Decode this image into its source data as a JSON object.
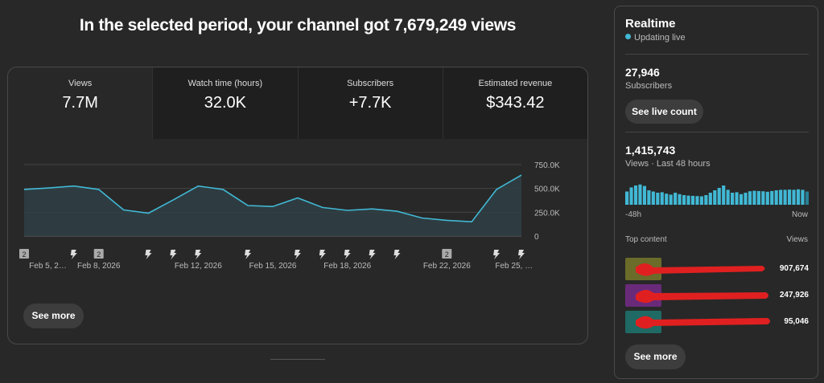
{
  "headline": "In the selected period, your channel got 7,679,249 views",
  "tabs": [
    {
      "label": "Views",
      "value": "7.7M",
      "active": true
    },
    {
      "label": "Watch time (hours)",
      "value": "32.0K",
      "active": false
    },
    {
      "label": "Subscribers",
      "value": "+7.7K",
      "active": false
    },
    {
      "label": "Estimated revenue",
      "value": "$343.42",
      "active": false
    }
  ],
  "chart_data": {
    "type": "area",
    "y_ticks": [
      "750.0K",
      "500.0K",
      "250.0K",
      "0"
    ],
    "ylim": [
      0,
      750000
    ],
    "values": [
      490000,
      505000,
      525000,
      490000,
      275000,
      240000,
      380000,
      525000,
      490000,
      320000,
      310000,
      400000,
      300000,
      270000,
      285000,
      260000,
      190000,
      165000,
      150000,
      490000,
      640000
    ],
    "x_labels": [
      "Feb 5, 2…",
      "Feb 8, 2026",
      "Feb 12, 2026",
      "Feb 15, 2026",
      "Feb 18, 2026",
      "Feb 22, 2026",
      "Feb 25, …"
    ],
    "x_label_positions": [
      0.2,
      3,
      7,
      10,
      13,
      17,
      19.7
    ],
    "markers": [
      {
        "index": 0,
        "type": "count",
        "label": "2"
      },
      {
        "index": 2,
        "type": "short"
      },
      {
        "index": 3,
        "type": "count",
        "label": "2"
      },
      {
        "index": 5,
        "type": "short"
      },
      {
        "index": 6,
        "type": "short"
      },
      {
        "index": 7,
        "type": "short"
      },
      {
        "index": 9,
        "type": "short"
      },
      {
        "index": 11,
        "type": "short"
      },
      {
        "index": 12,
        "type": "short"
      },
      {
        "index": 13,
        "type": "short"
      },
      {
        "index": 14,
        "type": "short"
      },
      {
        "index": 15,
        "type": "short"
      },
      {
        "index": 17,
        "type": "count",
        "label": "2"
      },
      {
        "index": 19,
        "type": "short"
      },
      {
        "index": 20,
        "type": "short"
      }
    ],
    "line_color": "#41b8d5"
  },
  "see_more": "See more",
  "realtime": {
    "title": "Realtime",
    "status": "Updating live",
    "subscribers_value": "27,946",
    "subscribers_label": "Subscribers",
    "live_count_button": "See live count",
    "views_value": "1,415,743",
    "views_label": "Views · Last 48 hours",
    "bars": [
      0.55,
      0.72,
      0.8,
      0.84,
      0.78,
      0.6,
      0.55,
      0.5,
      0.52,
      0.46,
      0.42,
      0.5,
      0.44,
      0.4,
      0.38,
      0.37,
      0.36,
      0.35,
      0.4,
      0.5,
      0.6,
      0.7,
      0.8,
      0.62,
      0.5,
      0.52,
      0.44,
      0.5,
      0.56,
      0.58,
      0.57,
      0.56,
      0.54,
      0.57,
      0.6,
      0.62,
      0.62,
      0.63,
      0.62,
      0.64,
      0.62,
      0.55
    ],
    "axis_start": "-48h",
    "axis_end": "Now",
    "top_content_label": "Top content",
    "views_col_label": "Views",
    "top_content": [
      {
        "views": "907,674",
        "thumb": "#6b6b2a"
      },
      {
        "views": "247,926",
        "thumb": "#6a2a7a"
      },
      {
        "views": "95,046",
        "thumb": "#1f6a64"
      }
    ],
    "see_more": "See more"
  }
}
